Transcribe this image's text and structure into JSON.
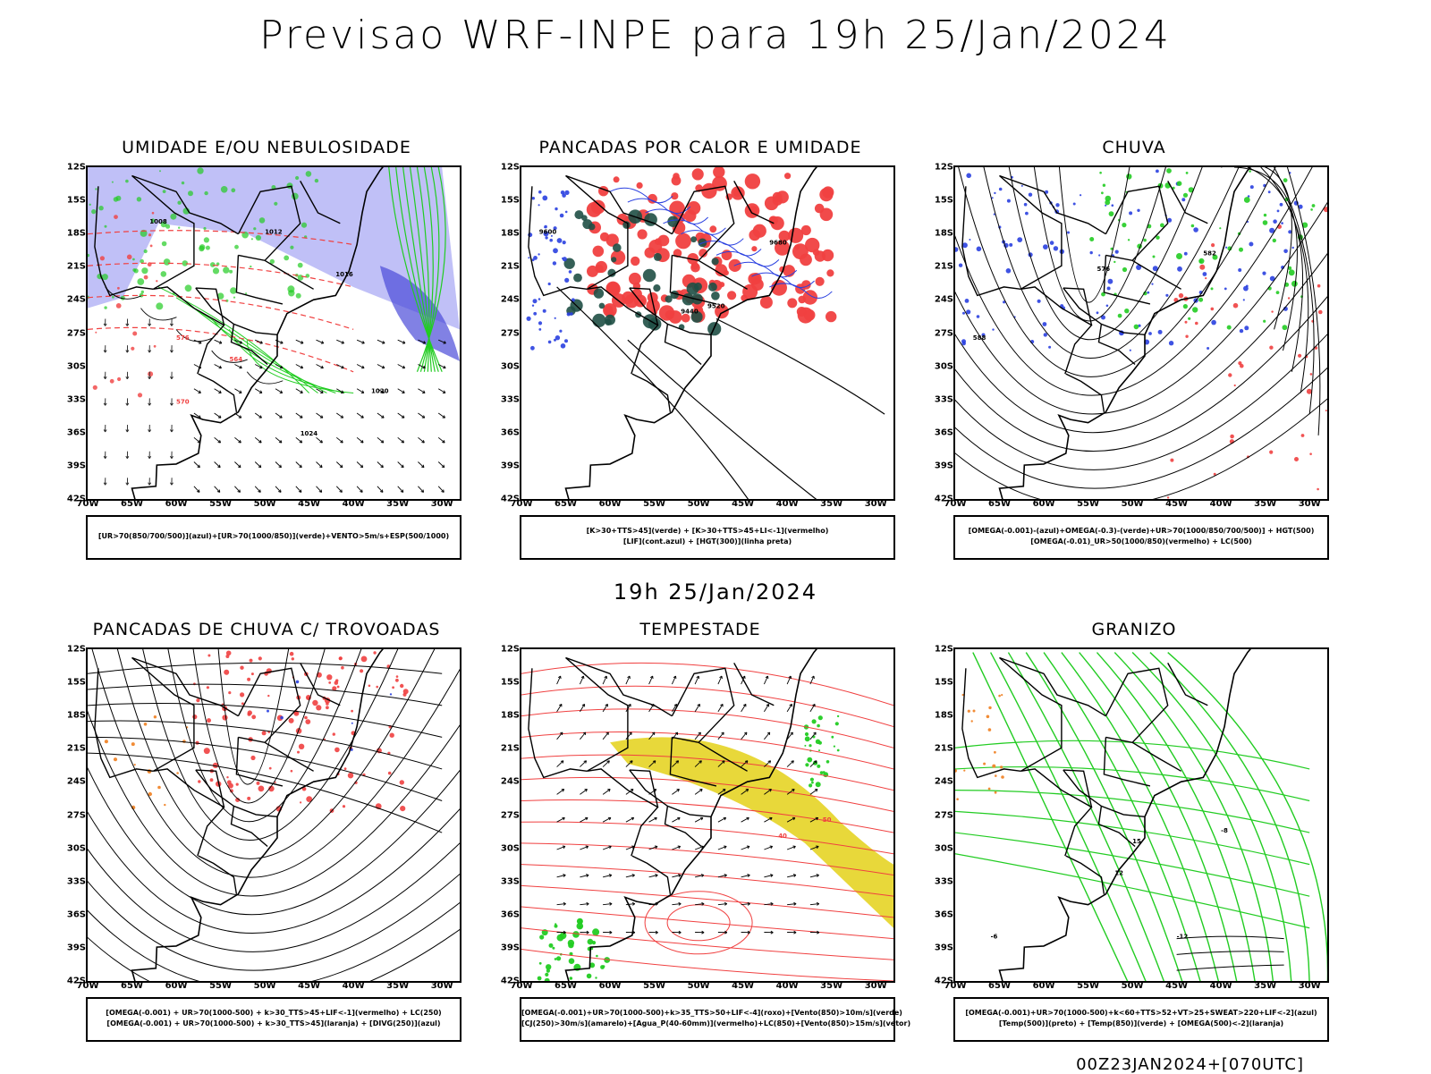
{
  "title": "Previsao WRF-INPE  para 19h 25/Jan/2024",
  "middle_label": "19h 25/Jan/2024",
  "footer": "00Z23JAN2024+[070UTC]",
  "lat_ticks": [
    "12S",
    "15S",
    "18S",
    "21S",
    "24S",
    "27S",
    "30S",
    "33S",
    "36S",
    "39S",
    "42S"
  ],
  "lon_ticks": [
    "70W",
    "65W",
    "60W",
    "55W",
    "50W",
    "45W",
    "40W",
    "35W",
    "30W"
  ],
  "panels": [
    {
      "title": "UMIDADE E/OU NEBULOSIDADE",
      "legend": [
        "[UR>70(850/700/500)](azul)+[UR>70(1000/850)](verde)+VENTO>5m/s+ESP(500/1000)"
      ],
      "contour_labels": [
        "1008",
        "1012",
        "1016",
        "1020",
        "1024",
        "576",
        "564",
        "570"
      ]
    },
    {
      "title": "PANCADAS POR CALOR E UMIDADE",
      "legend": [
        "[K>30+TTS>45](verde) + [K>30+TTS>45+LI<-1](vermelho)",
        "[LIF](cont.azul) + [HGT(300)](linha preta)"
      ],
      "contour_labels": [
        "9600",
        "9680",
        "9520",
        "9440"
      ]
    },
    {
      "title": "CHUVA",
      "legend": [
        "[OMEGA(-0.001)-(azul)+OMEGA(-0.3)-(verde)+UR>70(1000/850/700/500)] + HGT(500)",
        "[OMEGA(-0.01)_UR>50(1000/850)(vermelho) + LC(500)"
      ],
      "contour_labels": [
        "576",
        "588",
        "582"
      ]
    },
    {
      "title": "PANCADAS DE CHUVA C/ TROVOADAS",
      "legend": [
        "[OMEGA(-0.001) + UR>70(1000-500) + k>30_TTS>45+LIF<-1](vermelho) + LC(250)",
        "[OMEGA(-0.001) + UR>70(1000-500) + k>30_TTS>45](laranja) + [DIVG(250)](azul)"
      ],
      "contour_labels": []
    },
    {
      "title": "TEMPESTADE",
      "legend": [
        "[OMEGA(-0.001)+UR>70(1000-500)+k>35_TTS>50+LIF<-4](roxo)+[Vento(850)>10m/s](verde)",
        "[CJ(250)>30m/s](amarelo)+[Agua_P(40-60mm)](vermelho)+LC(850)+[Vento(850)>15m/s](vetor)"
      ],
      "contour_labels": [
        "40",
        "50"
      ]
    },
    {
      "title": "GRANIZO",
      "legend": [
        "[OMEGA(-0.001)+UR>70(1000-500)+k<60+TTS>52+VT>25+SWEAT>220+LIF<-2](azul)",
        "[Temp(500)](preto) + [Temp(850)](verde) + [OMEGA(500)<-2](laranja)"
      ],
      "contour_labels": [
        "-12",
        "-6",
        "12",
        "15",
        "-8"
      ]
    }
  ],
  "colors": {
    "blue_humidity": "#8c8cf0",
    "green": "#22cc22",
    "red": "#f04040",
    "dark_green": "#1f4f45",
    "yellow": "#e8d83a",
    "orange": "#f08020",
    "blue": "#2a40e0"
  }
}
